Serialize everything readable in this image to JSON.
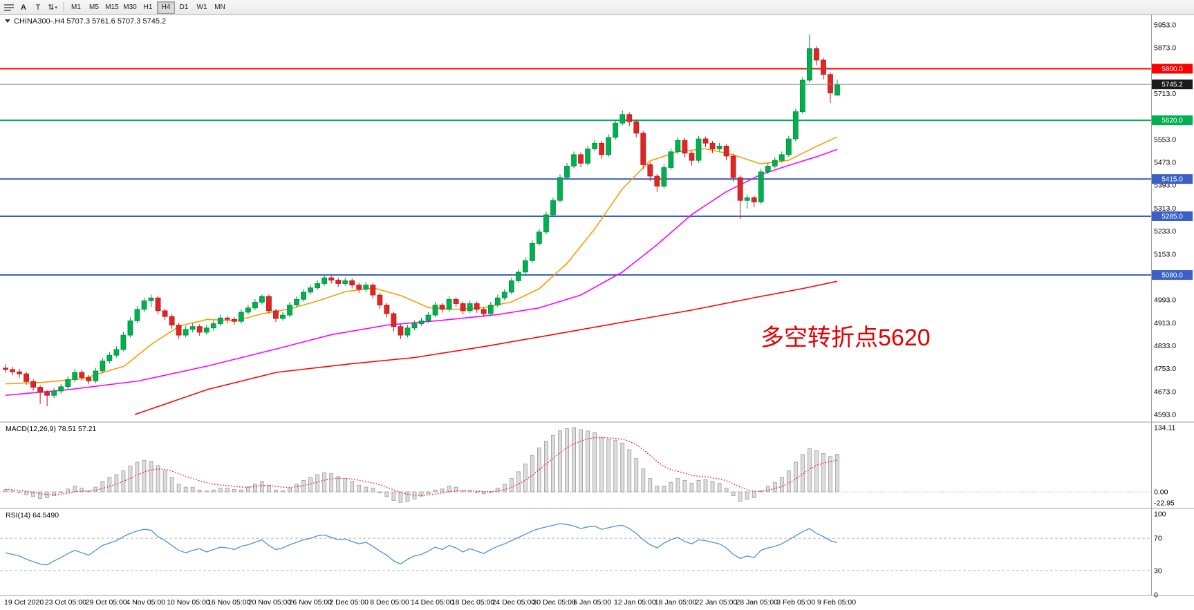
{
  "toolbar": {
    "tool_buttons": [
      {
        "label": "A"
      },
      {
        "label": "T"
      }
    ],
    "arrows_glyph": "⇅",
    "dropdown_glyph": "▾",
    "timeframes": [
      "M1",
      "M5",
      "M15",
      "M30",
      "H1",
      "H4",
      "D1",
      "W1",
      "MN"
    ],
    "active_timeframe": "H4"
  },
  "header": {
    "dropdown_glyph": "▼",
    "symbol": "CHINA300-",
    "timeframe": "H4",
    "title_text": "CHINA300-.H4 5707.3 5761.6 5707.3 5745.2",
    "open": "5707.3",
    "high": "5761.6",
    "low": "5707.3",
    "close": "5745.2"
  },
  "annotation": {
    "text": "多空转折点5620",
    "color": "#e60000"
  },
  "chart_data": {
    "type": "candlestick",
    "symbol": "CHINA300-",
    "timeframe": "H4",
    "y_axis": {
      "min": 4593.0,
      "max": 5953.0,
      "step": 80.0
    },
    "x_axis": {
      "labels": [
        "19 Oct 2020",
        "23 Oct 05:00",
        "29 Oct 05:00",
        "4 Nov 05:00",
        "10 Nov 05:00",
        "16 Nov 05:00",
        "20 Nov 05:00",
        "26 Nov 05:00",
        "2 Dec 05:00",
        "8 Dec 05:00",
        "14 Dec 05:00",
        "18 Dec 05:00",
        "24 Dec 05:00",
        "30 Dec 05:00",
        "6 Jan 05:00",
        "12 Jan 05:00",
        "18 Jan 05:00",
        "22 Jan 05:00",
        "28 Jan 05:00",
        "3 Feb 05:00",
        "9 Feb 05:00"
      ]
    },
    "hlines": [
      {
        "price": 5800.0,
        "color": "#ff0000",
        "label": "5800.0"
      },
      {
        "price": 5620.0,
        "color": "#00b050",
        "label": "5620.0"
      },
      {
        "price": 5415.0,
        "color": "#3a5fc8",
        "label": "5415.0"
      },
      {
        "price": 5285.0,
        "color": "#3a5fc8",
        "label": "5285.0"
      },
      {
        "price": 5080.0,
        "color": "#3a5fc8",
        "label": "5080.0"
      }
    ],
    "price_marker": {
      "price": 5745.2,
      "line_color": "#808080",
      "badge_color": "#1a1a1a",
      "label": "5745.2"
    },
    "candle_colors": {
      "up": "#00b050",
      "up_border": "#008f40",
      "down": "#e02525",
      "down_border": "#b51b1b"
    },
    "ohlc": [
      [
        4755,
        4768,
        4738,
        4750
      ],
      [
        4750,
        4760,
        4730,
        4742
      ],
      [
        4742,
        4752,
        4722,
        4735
      ],
      [
        4735,
        4742,
        4696,
        4708
      ],
      [
        4708,
        4716,
        4676,
        4688
      ],
      [
        4688,
        4695,
        4630,
        4670
      ],
      [
        4670,
        4678,
        4622,
        4660
      ],
      [
        4660,
        4686,
        4650,
        4675
      ],
      [
        4675,
        4700,
        4665,
        4690
      ],
      [
        4690,
        4726,
        4682,
        4715
      ],
      [
        4715,
        4752,
        4706,
        4740
      ],
      [
        4740,
        4749,
        4712,
        4722
      ],
      [
        4722,
        4731,
        4698,
        4710
      ],
      [
        4710,
        4756,
        4702,
        4745
      ],
      [
        4745,
        4791,
        4738,
        4780
      ],
      [
        4780,
        4812,
        4771,
        4800
      ],
      [
        4800,
        4831,
        4792,
        4820
      ],
      [
        4820,
        4882,
        4813,
        4870
      ],
      [
        4870,
        4932,
        4862,
        4920
      ],
      [
        4920,
        4971,
        4912,
        4960
      ],
      [
        4960,
        5001,
        4952,
        4990
      ],
      [
        4990,
        5012,
        4968,
        5000
      ],
      [
        5000,
        5008,
        4942,
        4955
      ],
      [
        4955,
        4963,
        4922,
        4935
      ],
      [
        4935,
        4944,
        4892,
        4905
      ],
      [
        4905,
        4913,
        4856,
        4870
      ],
      [
        4870,
        4902,
        4862,
        4890
      ],
      [
        4890,
        4912,
        4880,
        4900
      ],
      [
        4900,
        4908,
        4868,
        4880
      ],
      [
        4880,
        4906,
        4871,
        4895
      ],
      [
        4895,
        4921,
        4886,
        4910
      ],
      [
        4910,
        4941,
        4902,
        4930
      ],
      [
        4930,
        4938,
        4912,
        4925
      ],
      [
        4925,
        4933,
        4906,
        4918
      ],
      [
        4918,
        4961,
        4910,
        4950
      ],
      [
        4950,
        4976,
        4941,
        4965
      ],
      [
        4965,
        4996,
        4957,
        4985
      ],
      [
        4985,
        5012,
        4977,
        5005
      ],
      [
        5005,
        5012,
        4944,
        4955
      ],
      [
        4955,
        4962,
        4916,
        4928
      ],
      [
        4928,
        4951,
        4920,
        4940
      ],
      [
        4940,
        4986,
        4932,
        4975
      ],
      [
        4975,
        5006,
        4967,
        4995
      ],
      [
        4995,
        5031,
        4987,
        5020
      ],
      [
        5020,
        5046,
        5012,
        5035
      ],
      [
        5035,
        5061,
        5027,
        5050
      ],
      [
        5050,
        5082,
        5042,
        5070
      ],
      [
        5070,
        5078,
        5050,
        5062
      ],
      [
        5062,
        5070,
        5038,
        5050
      ],
      [
        5050,
        5071,
        5042,
        5060
      ],
      [
        5060,
        5068,
        5033,
        5045
      ],
      [
        5045,
        5053,
        5018,
        5030
      ],
      [
        5030,
        5056,
        5022,
        5045
      ],
      [
        5045,
        5052,
        4998,
        5010
      ],
      [
        5010,
        5018,
        4962,
        4975
      ],
      [
        4975,
        4982,
        4932,
        4945
      ],
      [
        4945,
        4952,
        4882,
        4900
      ],
      [
        4900,
        4908,
        4856,
        4870
      ],
      [
        4870,
        4906,
        4862,
        4895
      ],
      [
        4895,
        4921,
        4887,
        4910
      ],
      [
        4910,
        4931,
        4902,
        4920
      ],
      [
        4920,
        4951,
        4912,
        4940
      ],
      [
        4940,
        4986,
        4932,
        4975
      ],
      [
        4975,
        4982,
        4948,
        4960
      ],
      [
        4960,
        5006,
        4952,
        4995
      ],
      [
        4995,
        5002,
        4968,
        4980
      ],
      [
        4980,
        4987,
        4942,
        4955
      ],
      [
        4955,
        4991,
        4947,
        4980
      ],
      [
        4980,
        4988,
        4948,
        4960
      ],
      [
        4960,
        4968,
        4933,
        4945
      ],
      [
        4945,
        4986,
        4937,
        4975
      ],
      [
        4975,
        5011,
        4967,
        5000
      ],
      [
        5000,
        5031,
        4992,
        5020
      ],
      [
        5020,
        5071,
        5012,
        5060
      ],
      [
        5060,
        5101,
        5052,
        5090
      ],
      [
        5090,
        5141,
        5082,
        5130
      ],
      [
        5130,
        5201,
        5122,
        5190
      ],
      [
        5190,
        5241,
        5182,
        5230
      ],
      [
        5230,
        5301,
        5222,
        5290
      ],
      [
        5290,
        5351,
        5282,
        5340
      ],
      [
        5340,
        5431,
        5332,
        5420
      ],
      [
        5420,
        5471,
        5412,
        5460
      ],
      [
        5460,
        5511,
        5452,
        5500
      ],
      [
        5500,
        5508,
        5456,
        5470
      ],
      [
        5470,
        5531,
        5462,
        5520
      ],
      [
        5520,
        5551,
        5512,
        5540
      ],
      [
        5540,
        5548,
        5486,
        5500
      ],
      [
        5500,
        5571,
        5492,
        5560
      ],
      [
        5560,
        5621,
        5552,
        5610
      ],
      [
        5610,
        5655,
        5602,
        5640
      ],
      [
        5640,
        5648,
        5600,
        5615
      ],
      [
        5615,
        5623,
        5560,
        5575
      ],
      [
        5575,
        5583,
        5450,
        5465
      ],
      [
        5465,
        5473,
        5408,
        5425
      ],
      [
        5425,
        5433,
        5370,
        5390
      ],
      [
        5390,
        5466,
        5382,
        5455
      ],
      [
        5455,
        5521,
        5447,
        5510
      ],
      [
        5510,
        5561,
        5502,
        5550
      ],
      [
        5550,
        5558,
        5490,
        5505
      ],
      [
        5505,
        5513,
        5462,
        5480
      ],
      [
        5480,
        5566,
        5472,
        5555
      ],
      [
        5555,
        5563,
        5526,
        5540
      ],
      [
        5540,
        5548,
        5506,
        5520
      ],
      [
        5520,
        5541,
        5512,
        5530
      ],
      [
        5530,
        5538,
        5480,
        5495
      ],
      [
        5495,
        5503,
        5406,
        5420
      ],
      [
        5420,
        5428,
        5275,
        5340
      ],
      [
        5340,
        5361,
        5312,
        5350
      ],
      [
        5350,
        5358,
        5316,
        5335
      ],
      [
        5335,
        5451,
        5327,
        5440
      ],
      [
        5440,
        5471,
        5432,
        5460
      ],
      [
        5460,
        5491,
        5452,
        5480
      ],
      [
        5480,
        5511,
        5472,
        5500
      ],
      [
        5500,
        5566,
        5492,
        5555
      ],
      [
        5555,
        5661,
        5547,
        5650
      ],
      [
        5650,
        5771,
        5642,
        5760
      ],
      [
        5760,
        5920,
        5752,
        5870
      ],
      [
        5870,
        5878,
        5812,
        5830
      ],
      [
        5830,
        5838,
        5762,
        5780
      ],
      [
        5780,
        5788,
        5680,
        5715
      ],
      [
        5707.3,
        5761.6,
        5707.3,
        5745.2
      ]
    ],
    "moving_averages": [
      {
        "name": "fast-ma",
        "color": "#ff9900",
        "points": [
          [
            8,
            4700
          ],
          [
            60,
            4705
          ],
          [
            120,
            4718
          ],
          [
            180,
            4762
          ],
          [
            220,
            4840
          ],
          [
            260,
            4902
          ],
          [
            300,
            4925
          ],
          [
            340,
            4920
          ],
          [
            380,
            4945
          ],
          [
            420,
            4962
          ],
          [
            460,
            4990
          ],
          [
            500,
            5022
          ],
          [
            540,
            5035
          ],
          [
            580,
            5008
          ],
          [
            620,
            4966
          ],
          [
            660,
            4960
          ],
          [
            700,
            4966
          ],
          [
            740,
            4986
          ],
          [
            780,
            5032
          ],
          [
            820,
            5120
          ],
          [
            860,
            5240
          ],
          [
            900,
            5380
          ],
          [
            940,
            5478
          ],
          [
            980,
            5510
          ],
          [
            1020,
            5521
          ],
          [
            1060,
            5500
          ],
          [
            1100,
            5468
          ],
          [
            1140,
            5480
          ],
          [
            1180,
            5528
          ],
          [
            1211,
            5562
          ]
        ]
      },
      {
        "name": "mid-ma",
        "color": "#ff00ff",
        "points": [
          [
            8,
            4660
          ],
          [
            100,
            4680
          ],
          [
            200,
            4710
          ],
          [
            300,
            4762
          ],
          [
            400,
            4822
          ],
          [
            480,
            4872
          ],
          [
            560,
            4905
          ],
          [
            640,
            4922
          ],
          [
            720,
            4942
          ],
          [
            780,
            4965
          ],
          [
            840,
            5010
          ],
          [
            900,
            5090
          ],
          [
            950,
            5185
          ],
          [
            1000,
            5290
          ],
          [
            1050,
            5370
          ],
          [
            1100,
            5430
          ],
          [
            1140,
            5462
          ],
          [
            1180,
            5492
          ],
          [
            1211,
            5518
          ]
        ]
      },
      {
        "name": "slow-ma",
        "color": "#ff0000",
        "points": [
          [
            195,
            4593
          ],
          [
            300,
            4680
          ],
          [
            400,
            4740
          ],
          [
            500,
            4768
          ],
          [
            600,
            4792
          ],
          [
            700,
            4830
          ],
          [
            800,
            4872
          ],
          [
            900,
            4915
          ],
          [
            1000,
            4957
          ],
          [
            1100,
            5005
          ],
          [
            1160,
            5032
          ],
          [
            1211,
            5058
          ]
        ]
      }
    ],
    "indicators": [
      {
        "name": "MACD",
        "display": "MACD(12,26,9) 78.51 57.21",
        "histogram_color": "#dcdcdc",
        "histogram_border": "#9b9b9b",
        "signal_color": "#ff0000",
        "axis_labels": [
          {
            "value": 134.11,
            "label": "134.11"
          },
          {
            "value": 0,
            "label": "0.00"
          },
          {
            "value": -22.95,
            "label": "-22.95"
          }
        ],
        "histogram": [
          5,
          2,
          -2,
          -6,
          -10,
          -14,
          -12,
          -8,
          -2,
          6,
          12,
          8,
          2,
          10,
          22,
          30,
          36,
          44,
          54,
          62,
          66,
          64,
          55,
          44,
          30,
          16,
          10,
          10,
          4,
          2,
          4,
          8,
          8,
          5,
          4,
          10,
          16,
          22,
          14,
          4,
          2,
          8,
          16,
          24,
          30,
          36,
          40,
          38,
          32,
          28,
          22,
          14,
          10,
          8,
          -2,
          -10,
          -18,
          -22,
          -20,
          -15,
          -9,
          -4,
          4,
          6,
          12,
          10,
          2,
          2,
          0,
          -4,
          0,
          8,
          16,
          28,
          42,
          58,
          76,
          92,
          106,
          118,
          128,
          132,
          134.11,
          130,
          127,
          124,
          114,
          110,
          108,
          102,
          88,
          70,
          48,
          28,
          12,
          12,
          20,
          28,
          24,
          18,
          24,
          26,
          22,
          18,
          8,
          -8,
          -20,
          -16,
          -12,
          2,
          12,
          20,
          30,
          44,
          62,
          78,
          90,
          86,
          80,
          74,
          78.51
        ]
      },
      {
        "name": "RSI",
        "display": "RSI(14) 64.5490",
        "line_color": "#4a90d9",
        "levels": [
          70,
          30
        ],
        "axis_labels": [
          {
            "value": 100,
            "label": "100"
          },
          {
            "value": 70,
            "label": "70"
          },
          {
            "value": 30,
            "label": "30"
          },
          {
            "value": 0,
            "label": "0"
          }
        ],
        "values": [
          52,
          50,
          48,
          44,
          41,
          38,
          37,
          42,
          46,
          51,
          55,
          52,
          49,
          55,
          61,
          64,
          67,
          72,
          76,
          79,
          81,
          80,
          72,
          67,
          61,
          55,
          52,
          55,
          57,
          53,
          56,
          59,
          58,
          56,
          60,
          62,
          65,
          68,
          61,
          56,
          58,
          62,
          65,
          68,
          70,
          73,
          74,
          71,
          68,
          69,
          66,
          63,
          65,
          60,
          54,
          49,
          42,
          38,
          44,
          48,
          50,
          54,
          59,
          56,
          61,
          58,
          53,
          57,
          54,
          51,
          56,
          60,
          63,
          67,
          71,
          75,
          79,
          82,
          84,
          86,
          88,
          87,
          85,
          82,
          84,
          85,
          81,
          83,
          85,
          86,
          82,
          76,
          68,
          62,
          58,
          64,
          68,
          71,
          66,
          63,
          68,
          67,
          65,
          63,
          58,
          50,
          45,
          48,
          46,
          55,
          58,
          60,
          63,
          68,
          73,
          78,
          82,
          76,
          72,
          67,
          64.55
        ]
      }
    ]
  }
}
